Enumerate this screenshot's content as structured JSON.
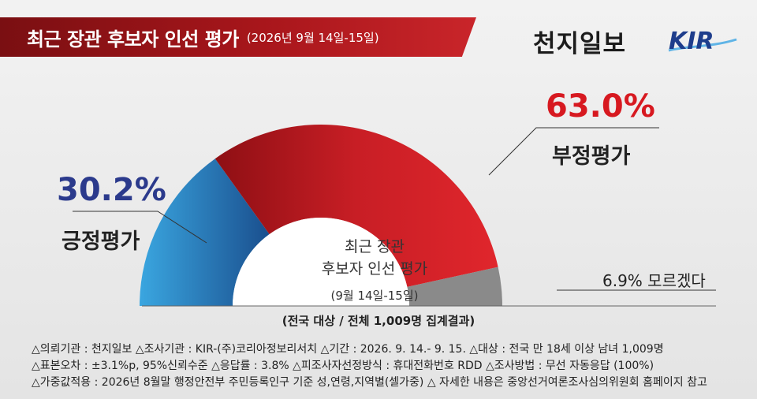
{
  "header": {
    "title": "최근 장관 후보자 인선 평가",
    "subtitle": "(2026년 9월 14일-15일)",
    "brand": "천지일보",
    "logo": "KIR"
  },
  "center": {
    "line1": "최근 장관",
    "line2": "후보자 인선 평가",
    "line3": "(9월 14일-15일)"
  },
  "labels": {
    "positive_value": "30.2%",
    "positive_label": "긍정평가",
    "negative_value": "63.0%",
    "negative_label": "부정평가",
    "unknown_text": "6.9% 모르겠다"
  },
  "base_note": "(전국 대상 / 전체 1,009명 집계결과)",
  "footnotes": [
    "△의뢰기관 : 천지일보   △조사기관 : KIR-(주)코리아정보리서치   △기간 : 2026. 9. 14.- 9. 15.  △대상 : 전국 만 18세 이상 남녀 1,009명",
    "△표본오차 : ±3.1%p, 95%신뢰수준  △응답률 : 3.8%  △피조사자선정방식 : 휴대전화번호 RDD   △조사방법 : 무선 자동응답 (100%)",
    "△가중값적용 : 2026년 8월말 행정안전부 주민등록인구 기준 성,연령,지역별(셀가중)  △ 자세한 내용은 중앙선거여론조사심의위원회 홈페이지 참고"
  ],
  "chart_data": {
    "type": "pie",
    "style": "semicircle-donut",
    "title": "최근 장관 후보자 인선 평가",
    "categories": [
      "긍정평가",
      "부정평가",
      "모르겠다"
    ],
    "values": [
      30.2,
      63.0,
      6.9
    ],
    "unit": "%",
    "colors": [
      "#2e8fd0",
      "#d42027",
      "#8a8a8a"
    ]
  },
  "colors": {
    "positive_text": "#2b3a8c",
    "negative_text": "#d71920",
    "title_bar": "#a8161b"
  }
}
